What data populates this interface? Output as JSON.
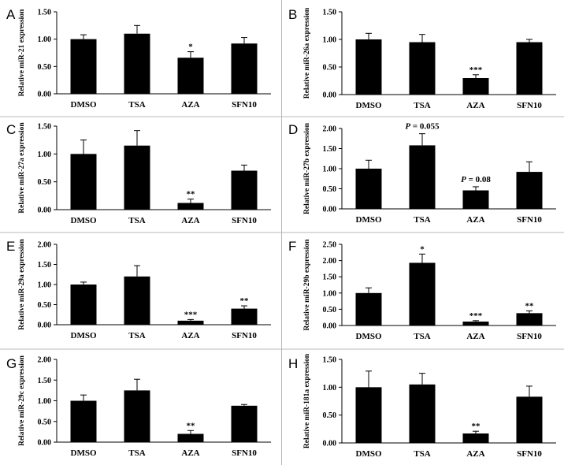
{
  "chart_data": [
    {
      "type": "bar",
      "panel": "A",
      "ylabel": "Relative miR-21 expression",
      "categories": [
        "DMSO",
        "TSA",
        "AZA",
        "SFN10"
      ],
      "values": [
        1.0,
        1.1,
        0.66,
        0.92
      ],
      "errors": [
        0.08,
        0.15,
        0.11,
        0.11
      ],
      "annotations": [
        "",
        "",
        "*",
        ""
      ],
      "ylim": [
        0,
        1.5
      ],
      "yticks": [
        "0.00",
        "0.50",
        "1.00",
        "1.50"
      ]
    },
    {
      "type": "bar",
      "panel": "B",
      "ylabel": "Relative miR-26a expression",
      "categories": [
        "DMSO",
        "TSA",
        "AZA",
        "SFN10"
      ],
      "values": [
        1.0,
        0.95,
        0.3,
        0.95
      ],
      "errors": [
        0.11,
        0.14,
        0.06,
        0.05
      ],
      "annotations": [
        "",
        "",
        "***",
        ""
      ],
      "ylim": [
        0,
        1.5
      ],
      "yticks": [
        "0.00",
        "0.50",
        "1.00",
        "1.50"
      ]
    },
    {
      "type": "bar",
      "panel": "C",
      "ylabel": "Relative miR-27a expression",
      "categories": [
        "DMSO",
        "TSA",
        "AZA",
        "SFN10"
      ],
      "values": [
        1.0,
        1.15,
        0.12,
        0.7
      ],
      "errors": [
        0.25,
        0.27,
        0.07,
        0.1
      ],
      "annotations": [
        "",
        "",
        "**",
        ""
      ],
      "ylim": [
        0,
        1.5
      ],
      "yticks": [
        "0.00",
        "0.50",
        "1.00",
        "1.50"
      ]
    },
    {
      "type": "bar",
      "panel": "D",
      "ylabel": "Relative miR-27b expression",
      "categories": [
        "DMSO",
        "TSA",
        "AZA",
        "SFN10"
      ],
      "values": [
        1.0,
        1.58,
        0.46,
        0.92
      ],
      "errors": [
        0.21,
        0.29,
        0.09,
        0.25
      ],
      "annotations": [
        "",
        "P = 0.055",
        "P = 0.08",
        ""
      ],
      "ylim": [
        0,
        2.0
      ],
      "yticks": [
        "0.00",
        "0.50",
        "1.00",
        "1.50",
        "2.00"
      ]
    },
    {
      "type": "bar",
      "panel": "E",
      "ylabel": "Relative miR-29a expression",
      "categories": [
        "DMSO",
        "TSA",
        "AZA",
        "SFN10"
      ],
      "values": [
        1.0,
        1.2,
        0.1,
        0.4
      ],
      "errors": [
        0.06,
        0.27,
        0.03,
        0.07
      ],
      "annotations": [
        "",
        "",
        "***",
        "**"
      ],
      "ylim": [
        0,
        2.0
      ],
      "yticks": [
        "0.00",
        "0.50",
        "1.00",
        "1.50",
        "2.00"
      ]
    },
    {
      "type": "bar",
      "panel": "F",
      "ylabel": "Relative miR-29b expression",
      "categories": [
        "DMSO",
        "TSA",
        "AZA",
        "SFN10"
      ],
      "values": [
        1.0,
        1.93,
        0.12,
        0.38
      ],
      "errors": [
        0.16,
        0.27,
        0.03,
        0.07
      ],
      "annotations": [
        "",
        "*",
        "***",
        "**"
      ],
      "ylim": [
        0,
        2.5
      ],
      "yticks": [
        "0.00",
        "0.50",
        "1.00",
        "1.50",
        "2.00",
        "2.50"
      ]
    },
    {
      "type": "bar",
      "panel": "G",
      "ylabel": "Relative miR-29c expression",
      "categories": [
        "DMSO",
        "TSA",
        "AZA",
        "SFN10"
      ],
      "values": [
        1.0,
        1.25,
        0.2,
        0.88
      ],
      "errors": [
        0.14,
        0.27,
        0.08,
        0.03
      ],
      "annotations": [
        "",
        "",
        "**",
        ""
      ],
      "ylim": [
        0,
        2.0
      ],
      "yticks": [
        "0.00",
        "0.50",
        "1.00",
        "1.50",
        "2.00"
      ]
    },
    {
      "type": "bar",
      "panel": "H",
      "ylabel": "Relative miR-181a expression",
      "categories": [
        "DMSO",
        "TSA",
        "AZA",
        "SFN10"
      ],
      "values": [
        1.0,
        1.05,
        0.17,
        0.83
      ],
      "errors": [
        0.29,
        0.2,
        0.04,
        0.19
      ],
      "annotations": [
        "",
        "",
        "**",
        ""
      ],
      "ylim": [
        0,
        1.5
      ],
      "yticks": [
        "0.00",
        "0.50",
        "1.00",
        "1.50"
      ]
    }
  ]
}
